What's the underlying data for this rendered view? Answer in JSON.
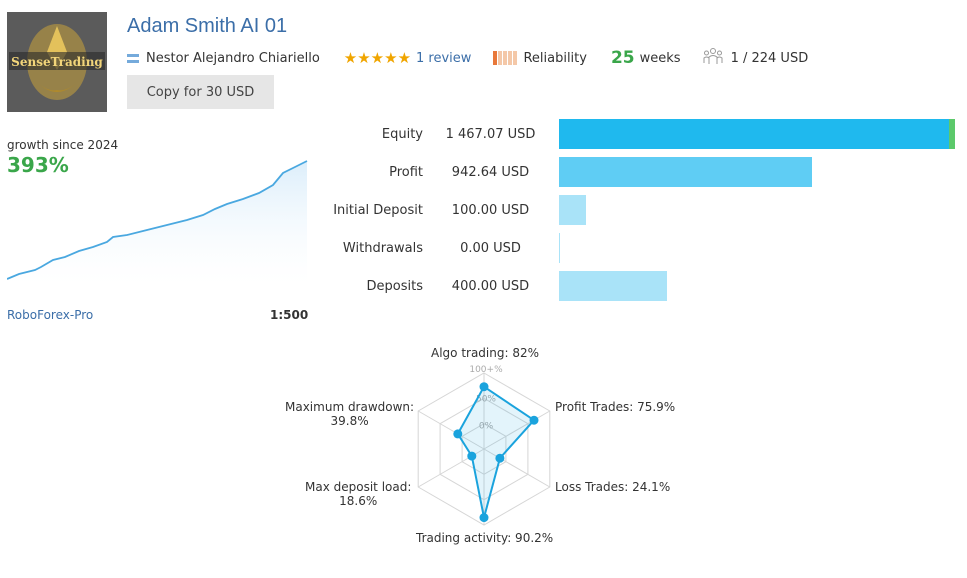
{
  "header": {
    "title": "Adam Smith AI 01",
    "logo_text": "SenseTrading",
    "author": "Nestor Alejandro Chiariello",
    "rating_stars": 5,
    "review_text": "1 review",
    "reliability_label": "Reliability",
    "reliability_level": 1,
    "weeks_value": "25",
    "weeks_label": "weeks",
    "subscribers": "1 / 224 USD",
    "copy_button": "Copy for 30 USD"
  },
  "growth": {
    "label": "growth since 2024",
    "value": "393%",
    "broker": "RoboForex-Pro",
    "leverage": "1:500"
  },
  "stats": [
    {
      "label": "Equity",
      "value": "1 467.07 USD",
      "fraction": 1.0,
      "color": "#1fb9ee",
      "accent": "#5cc96b"
    },
    {
      "label": "Profit",
      "value": "942.64 USD",
      "fraction": 0.64,
      "color": "#5fcdf4"
    },
    {
      "label": "Initial Deposit",
      "value": "100.00 USD",
      "fraction": 0.068,
      "color": "#a9e3f8"
    },
    {
      "label": "Withdrawals",
      "value": "0.00 USD",
      "fraction": 0.0,
      "color": "#a9e3f8"
    },
    {
      "label": "Deposits",
      "value": "400.00 USD",
      "fraction": 0.273,
      "color": "#a9e3f8"
    }
  ],
  "radar": {
    "ring_labels": [
      "100+%",
      "50%",
      "0%"
    ],
    "axes": [
      {
        "label": "Algo trading: 82%",
        "value": 82
      },
      {
        "label": "Profit Trades: 75.9%",
        "value": 75.9
      },
      {
        "label": "Loss Trades: 24.1%",
        "value": 24.1
      },
      {
        "label": "Trading activity: 90.2%",
        "value": 90.2
      },
      {
        "label_line1": "Max deposit load:",
        "label_line2": "18.6%",
        "value": 18.6
      },
      {
        "label_line1": "Maximum drawdown:",
        "label_line2": "39.8%",
        "value": 39.8
      }
    ],
    "color": "#1aa3dd"
  }
}
